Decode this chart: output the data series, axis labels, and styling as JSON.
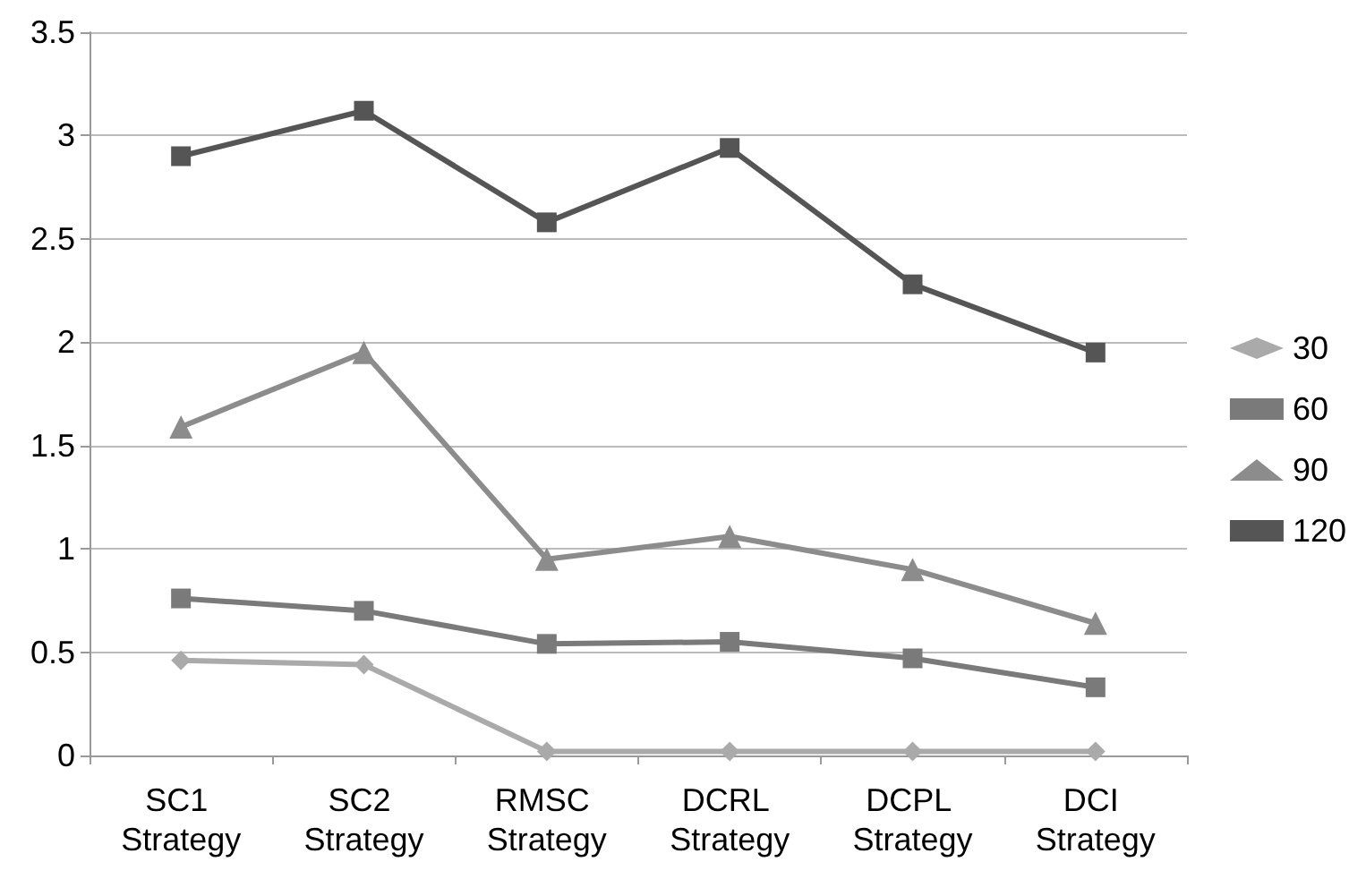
{
  "chart_data": {
    "type": "line",
    "categories": [
      "SC1 Strategy",
      "SC2 Strategy",
      "RMSC Strategy",
      "DCRL Strategy",
      "DCPL Strategy",
      "DCI Strategy"
    ],
    "series": [
      {
        "name": "30",
        "color": "#aaaaaa",
        "marker": "diamond",
        "values": [
          0.46,
          0.44,
          0.02,
          0.02,
          0.02,
          0.02
        ]
      },
      {
        "name": "60",
        "color": "#7a7a7a",
        "marker": "square",
        "values": [
          0.76,
          0.7,
          0.54,
          0.55,
          0.47,
          0.33
        ]
      },
      {
        "name": "90",
        "color": "#8c8c8c",
        "marker": "triangle",
        "values": [
          1.59,
          1.95,
          0.95,
          1.06,
          0.9,
          0.64
        ]
      },
      {
        "name": "120",
        "color": "#555555",
        "marker": "square",
        "values": [
          2.9,
          3.12,
          2.58,
          2.94,
          2.28,
          1.95
        ]
      }
    ],
    "ylim": [
      0,
      3.5
    ],
    "yticks": [
      0,
      0.5,
      1,
      1.5,
      2,
      2.5,
      3,
      3.5
    ],
    "grid": "y",
    "legend": "right",
    "line_style": "solid"
  }
}
